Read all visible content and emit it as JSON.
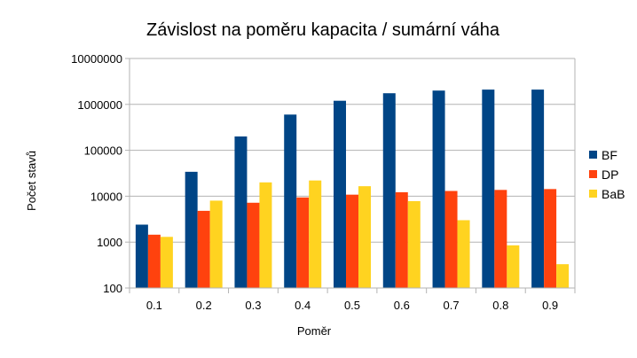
{
  "chart_data": {
    "type": "bar",
    "title": "Závislost na poměru kapacita / sumární váha",
    "xlabel": "Poměr",
    "ylabel": "Počet stavů",
    "yscale": "log",
    "ylim": [
      100,
      10000000
    ],
    "yticks": [
      "100",
      "1000",
      "10000",
      "100000",
      "1000000",
      "10000000"
    ],
    "categories": [
      "0.1",
      "0.2",
      "0.3",
      "0.4",
      "0.5",
      "0.6",
      "0.7",
      "0.8",
      "0.9"
    ],
    "series": [
      {
        "name": "BF",
        "color": "#004586",
        "values": [
          2400,
          34000,
          200000,
          600000,
          1200000,
          1750000,
          2000000,
          2100000,
          2100000
        ]
      },
      {
        "name": "DP",
        "color": "#ff420e",
        "values": [
          1450,
          4800,
          7200,
          9400,
          10800,
          12200,
          13000,
          13700,
          14300
        ]
      },
      {
        "name": "BaB",
        "color": "#ffd320",
        "values": [
          1300,
          8000,
          20000,
          22000,
          16500,
          7800,
          3000,
          850,
          330
        ]
      }
    ],
    "grid": true,
    "legend": "right"
  }
}
